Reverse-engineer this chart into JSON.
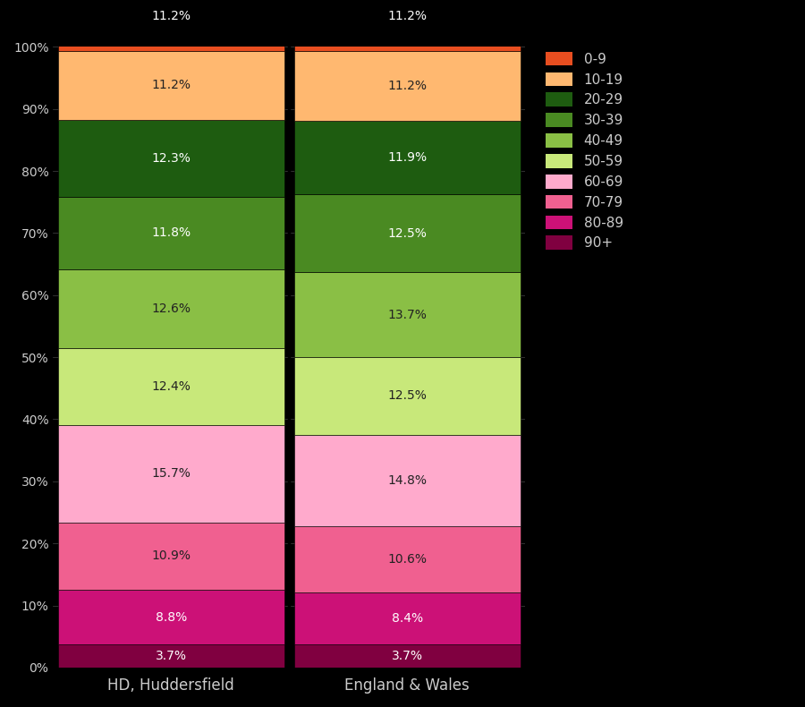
{
  "categories": [
    "HD, Huddersfield",
    "England & Wales"
  ],
  "age_groups_bottom_to_top": [
    "90+",
    "80-89",
    "70-79",
    "60-69",
    "50-59",
    "40-49",
    "30-39",
    "20-29",
    "10-19",
    "0-9"
  ],
  "colors_bottom_to_top": [
    "#800040",
    "#cc1177",
    "#f06090",
    "#ffaacc",
    "#c8e87a",
    "#8abf45",
    "#4a8a22",
    "#1e5c10",
    "#ffb870",
    "#e84e20"
  ],
  "huddersfield": [
    3.7,
    8.8,
    10.9,
    15.7,
    12.4,
    12.6,
    11.8,
    12.3,
    11.2,
    0.0
  ],
  "england_wales": [
    3.7,
    8.4,
    10.6,
    14.8,
    12.5,
    13.7,
    12.5,
    11.9,
    11.2,
    0.0
  ],
  "huddersfield_with_09": [
    3.7,
    8.8,
    10.9,
    15.7,
    12.4,
    12.6,
    11.8,
    12.3,
    11.2,
    11.2
  ],
  "england_wales_with_09": [
    3.7,
    8.4,
    10.6,
    14.8,
    12.5,
    13.7,
    12.5,
    11.9,
    11.2,
    11.2
  ],
  "legend_labels": [
    "0-9",
    "10-19",
    "20-29",
    "30-39",
    "40-49",
    "50-59",
    "60-69",
    "70-79",
    "80-89",
    "90+"
  ],
  "legend_colors": [
    "#e84e20",
    "#ffb870",
    "#1e5c10",
    "#4a8a22",
    "#8abf45",
    "#c8e87a",
    "#ffaacc",
    "#f06090",
    "#cc1177",
    "#800040"
  ],
  "background_color": "#000000",
  "text_color": "#cccccc",
  "figsize": [
    9.0,
    7.9
  ],
  "dpi": 100
}
